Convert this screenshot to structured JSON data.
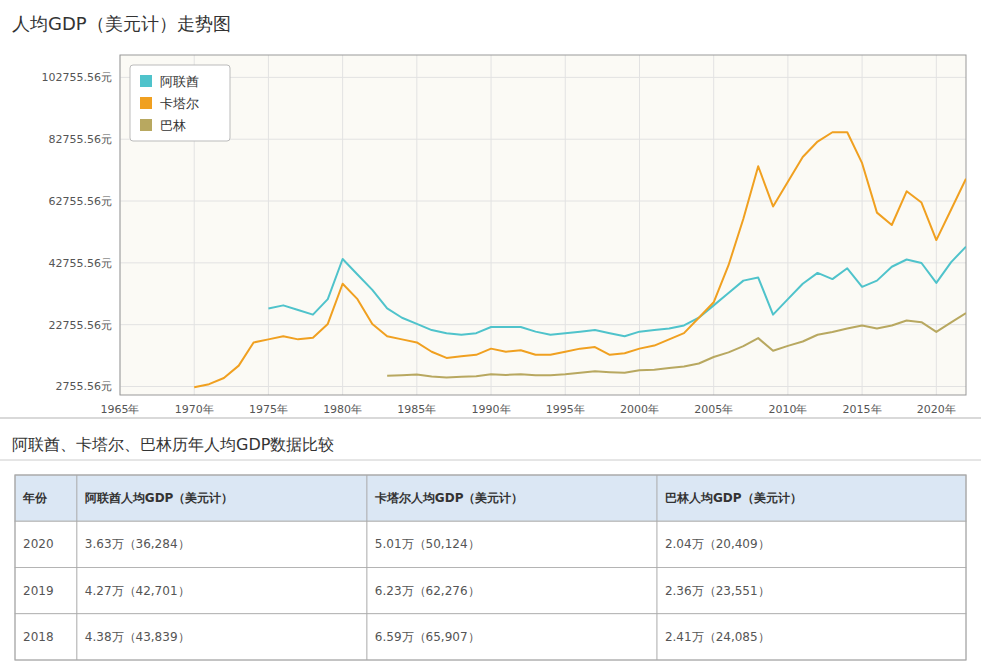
{
  "chart_data": {
    "type": "line",
    "title": "人均GDP（美元计）走势图",
    "x": [
      1965,
      1966,
      1967,
      1968,
      1969,
      1970,
      1971,
      1972,
      1973,
      1974,
      1975,
      1976,
      1977,
      1978,
      1979,
      1980,
      1981,
      1982,
      1983,
      1984,
      1985,
      1986,
      1987,
      1988,
      1989,
      1990,
      1991,
      1992,
      1993,
      1994,
      1995,
      1996,
      1997,
      1998,
      1999,
      2000,
      2001,
      2002,
      2003,
      2004,
      2005,
      2006,
      2007,
      2008,
      2009,
      2010,
      2011,
      2012,
      2013,
      2014,
      2015,
      2016,
      2017,
      2018,
      2019,
      2020,
      2021,
      2022
    ],
    "series": [
      {
        "name": "阿联酋",
        "color": "#4FC3CB",
        "values": [
          null,
          null,
          null,
          null,
          null,
          null,
          null,
          null,
          null,
          null,
          28000,
          29000,
          27500,
          26000,
          31000,
          44000,
          39000,
          34000,
          28000,
          25000,
          23000,
          21000,
          20000,
          19500,
          20000,
          22000,
          22000,
          22000,
          20500,
          19500,
          20000,
          20500,
          21000,
          20000,
          19000,
          20500,
          21000,
          21500,
          22500,
          25000,
          29000,
          33000,
          37000,
          38000,
          26000,
          31000,
          36000,
          39500,
          37500,
          41000,
          35000,
          37000,
          41500,
          43839,
          42701,
          36284,
          43000,
          48000
        ]
      },
      {
        "name": "卡塔尔",
        "color": "#F0A020",
        "values": [
          null,
          null,
          null,
          null,
          null,
          2500,
          3500,
          5500,
          9500,
          17000,
          18000,
          19000,
          18000,
          18500,
          23000,
          36000,
          31000,
          23000,
          19000,
          18000,
          17000,
          14000,
          12000,
          12500,
          13000,
          15000,
          14000,
          14500,
          13000,
          13000,
          14000,
          15000,
          15500,
          13000,
          13500,
          15000,
          16000,
          18000,
          20000,
          25000,
          30000,
          42000,
          57000,
          74000,
          61000,
          69000,
          77000,
          82000,
          85000,
          85000,
          75000,
          59000,
          55000,
          65907,
          62276,
          50124,
          60000,
          70000
        ]
      },
      {
        "name": "巴林",
        "color": "#B8A860",
        "values": [
          null,
          null,
          null,
          null,
          null,
          null,
          null,
          null,
          null,
          null,
          null,
          null,
          null,
          null,
          null,
          null,
          null,
          null,
          6200,
          6400,
          6600,
          6000,
          5700,
          5900,
          6100,
          6700,
          6500,
          6700,
          6400,
          6400,
          6700,
          7200,
          7700,
          7400,
          7200,
          8000,
          8200,
          8700,
          9200,
          10200,
          12300,
          13800,
          15800,
          18400,
          14300,
          15900,
          17300,
          19500,
          20400,
          21500,
          22500,
          21500,
          22500,
          24085,
          23551,
          20409,
          23500,
          26500
        ]
      }
    ],
    "xlim": [
      1965,
      2022
    ],
    "xticks": [
      {
        "value": 1965,
        "label": "1965年"
      },
      {
        "value": 1970,
        "label": "1970年"
      },
      {
        "value": 1975,
        "label": "1975年"
      },
      {
        "value": 1980,
        "label": "1980年"
      },
      {
        "value": 1985,
        "label": "1985年"
      },
      {
        "value": 1990,
        "label": "1990年"
      },
      {
        "value": 1995,
        "label": "1995年"
      },
      {
        "value": 2000,
        "label": "2000年"
      },
      {
        "value": 2005,
        "label": "2005年"
      },
      {
        "value": 2010,
        "label": "2010年"
      },
      {
        "value": 2015,
        "label": "2015年"
      },
      {
        "value": 2020,
        "label": "2020年"
      }
    ],
    "ylim": [
      0,
      110000
    ],
    "yticks": [
      {
        "value": 2755.56,
        "label": "2755.56元"
      },
      {
        "value": 22755.56,
        "label": "22755.56元"
      },
      {
        "value": 42755.56,
        "label": "42755.56元"
      },
      {
        "value": 62755.56,
        "label": "62755.56元"
      },
      {
        "value": 82755.56,
        "label": "82755.56元"
      },
      {
        "value": 102755.56,
        "label": "102755.56元"
      }
    ],
    "grid": true,
    "legend": "upper left"
  },
  "table": {
    "title": "阿联酋、卡塔尔、巴林历年人均GDP数据比较",
    "columns": [
      "年份",
      "阿联酋人均GDP（美元计）",
      "卡塔尔人均GDP（美元计）",
      "巴林人均GDP（美元计）"
    ],
    "rows": [
      [
        "2020",
        "3.63万（36,284）",
        "5.01万（50,124）",
        "2.04万（20,409）"
      ],
      [
        "2019",
        "4.27万（42,701）",
        "6.23万（62,276）",
        "2.36万（23,551）"
      ],
      [
        "2018",
        "4.38万（43,839）",
        "6.59万（65,907）",
        "2.41万（24,085）"
      ]
    ]
  }
}
